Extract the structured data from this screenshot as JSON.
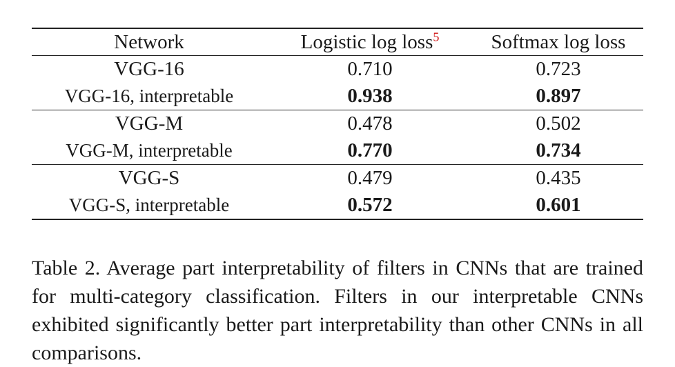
{
  "table": {
    "headers": {
      "network": "Network",
      "logistic": "Logistic log loss",
      "logistic_footnote": "5",
      "softmax": "Softmax log loss"
    },
    "rows": [
      {
        "network": "VGG-16",
        "logistic": "0.710",
        "softmax": "0.723",
        "bold": false
      },
      {
        "network": "VGG-16, interpretable",
        "logistic": "0.938",
        "softmax": "0.897",
        "bold": true
      },
      {
        "network": "VGG-M",
        "logistic": "0.478",
        "softmax": "0.502",
        "bold": false
      },
      {
        "network": "VGG-M, interpretable",
        "logistic": "0.770",
        "softmax": "0.734",
        "bold": true
      },
      {
        "network": "VGG-S",
        "logistic": "0.479",
        "softmax": "0.435",
        "bold": false
      },
      {
        "network": "VGG-S, interpretable",
        "logistic": "0.572",
        "softmax": "0.601",
        "bold": true
      }
    ]
  },
  "caption": "Table 2. Average part interpretability of filters in CNNs that are trained for multi-category classification.  Filters in our interpretable CNNs exhibited significantly better part interpretability than other CNNs in all comparisons.",
  "colors": {
    "footnote": "#d01010",
    "text": "#1a1a1a"
  }
}
